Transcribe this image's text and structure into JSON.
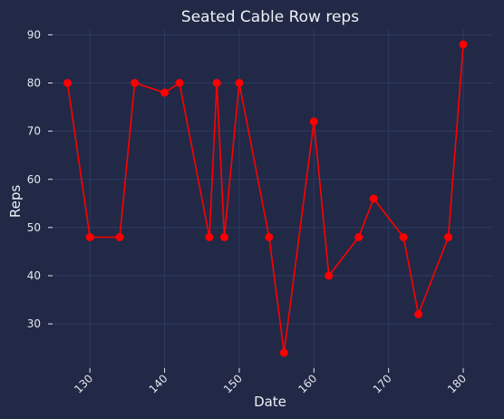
{
  "chart_data": {
    "type": "line",
    "title": "Seated Cable Row reps",
    "xlabel": "Date",
    "ylabel": "Reps",
    "xlim": [
      125,
      184
    ],
    "ylim": [
      20.8,
      91.2
    ],
    "xticks": [
      130,
      140,
      150,
      160,
      170,
      180
    ],
    "yticks": [
      30,
      40,
      50,
      60,
      70,
      80,
      90
    ],
    "grid": true,
    "series": [
      {
        "color": "#ff0000",
        "marker": "circle",
        "x": [
          127,
          130,
          134,
          136,
          140,
          142,
          146,
          147,
          148,
          150,
          154,
          156,
          160,
          162,
          166,
          168,
          172,
          174,
          178,
          180
        ],
        "y": [
          80,
          48,
          48,
          80,
          78,
          80,
          48,
          80,
          48,
          80,
          48,
          24,
          72,
          40,
          48,
          56,
          48,
          32,
          48,
          88
        ]
      }
    ],
    "colors": {
      "background": "#212946",
      "grid": "#2e3a64",
      "text": "#e6e6ef"
    }
  }
}
